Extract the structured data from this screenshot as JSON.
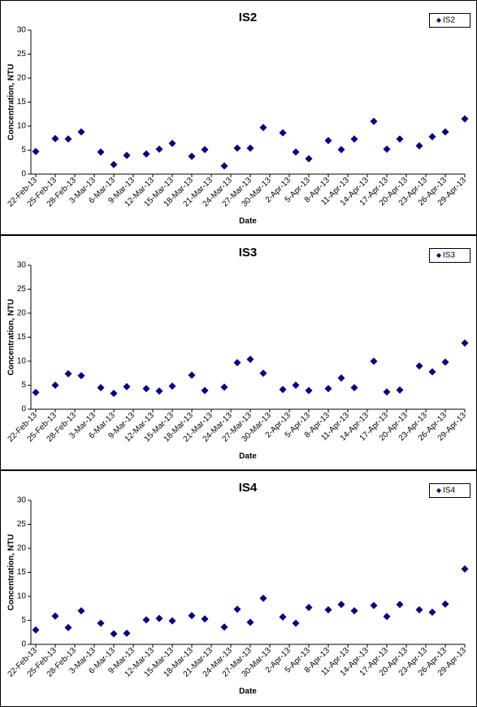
{
  "chart_data": [
    {
      "type": "scatter",
      "title": "IS2",
      "xlabel": "Date",
      "ylabel": "Concentration, NTU",
      "legend": "upper right",
      "x": [
        "22-Feb-13",
        "25-Feb-13",
        "27-Feb-13",
        "1-Mar-13",
        "4-Mar-13",
        "6-Mar-13",
        "8-Mar-13",
        "11-Mar-13",
        "13-Mar-13",
        "15-Mar-13",
        "18-Mar-13",
        "20-Mar-13",
        "23-Mar-13",
        "25-Mar-13",
        "27-Mar-13",
        "29-Mar-13",
        "1-Apr-13",
        "3-Apr-13",
        "5-Apr-13",
        "8-Apr-13",
        "10-Apr-13",
        "12-Apr-13",
        "15-Apr-13",
        "17-Apr-13",
        "19-Apr-13",
        "22-Apr-13",
        "24-Apr-13",
        "26-Apr-13",
        "29-Apr-13"
      ],
      "series": [
        {
          "name": "IS2",
          "color": "#000080",
          "values": [
            4.7,
            7.4,
            7.3,
            8.8,
            4.6,
            2.0,
            3.9,
            4.2,
            5.2,
            6.4,
            3.7,
            5.1,
            1.7,
            5.4,
            5.4,
            9.7,
            8.6,
            4.6,
            3.2,
            7.0,
            5.1,
            7.3,
            11.0,
            5.2,
            7.3,
            5.9,
            7.8,
            8.8,
            11.5
          ]
        }
      ],
      "xlim": [
        "22-Feb-13",
        "29-Apr-13"
      ],
      "xticks": [
        "22-Feb-13",
        "25-Feb-13",
        "28-Feb-13",
        "3-Mar-13",
        "6-Mar-13",
        "9-Mar-13",
        "12-Mar-13",
        "15-Mar-13",
        "18-Mar-13",
        "21-Mar-13",
        "24-Mar-13",
        "27-Mar-13",
        "30-Mar-13",
        "2-Apr-13",
        "5-Apr-13",
        "8-Apr-13",
        "11-Apr-13",
        "14-Apr-13",
        "17-Apr-13",
        "20-Apr-13",
        "23-Apr-13",
        "26-Apr-13",
        "29-Apr-13"
      ],
      "ylim": [
        0,
        30
      ],
      "yticks": [
        0,
        5,
        10,
        15,
        20,
        25,
        30
      ]
    },
    {
      "type": "scatter",
      "title": "IS3",
      "xlabel": "Date",
      "ylabel": "Concentration, NTU",
      "legend": "upper right",
      "x": [
        "22-Feb-13",
        "25-Feb-13",
        "27-Feb-13",
        "1-Mar-13",
        "4-Mar-13",
        "6-Mar-13",
        "8-Mar-13",
        "11-Mar-13",
        "13-Mar-13",
        "15-Mar-13",
        "18-Mar-13",
        "20-Mar-13",
        "23-Mar-13",
        "25-Mar-13",
        "27-Mar-13",
        "29-Mar-13",
        "1-Apr-13",
        "3-Apr-13",
        "5-Apr-13",
        "8-Apr-13",
        "10-Apr-13",
        "12-Apr-13",
        "15-Apr-13",
        "17-Apr-13",
        "19-Apr-13",
        "22-Apr-13",
        "24-Apr-13",
        "26-Apr-13",
        "29-Apr-13"
      ],
      "series": [
        {
          "name": "IS3",
          "color": "#000080",
          "values": [
            3.5,
            5.0,
            7.4,
            7.0,
            4.5,
            3.3,
            4.7,
            4.3,
            3.8,
            4.8,
            7.1,
            3.9,
            4.6,
            9.7,
            10.4,
            7.5,
            4.1,
            5.0,
            3.9,
            4.3,
            6.5,
            4.5,
            10.0,
            3.6,
            4.0,
            9.0,
            7.8,
            9.8,
            13.8
          ]
        }
      ],
      "xlim": [
        "22-Feb-13",
        "29-Apr-13"
      ],
      "xticks": [
        "22-Feb-13",
        "25-Feb-13",
        "28-Feb-13",
        "3-Mar-13",
        "6-Mar-13",
        "9-Mar-13",
        "12-Mar-13",
        "15-Mar-13",
        "18-Mar-13",
        "21-Mar-13",
        "24-Mar-13",
        "27-Mar-13",
        "30-Mar-13",
        "2-Apr-13",
        "5-Apr-13",
        "8-Apr-13",
        "11-Apr-13",
        "14-Apr-13",
        "17-Apr-13",
        "20-Apr-13",
        "23-Apr-13",
        "26-Apr-13",
        "29-Apr-13"
      ],
      "ylim": [
        0,
        30
      ],
      "yticks": [
        0,
        5,
        10,
        15,
        20,
        25,
        30
      ]
    },
    {
      "type": "scatter",
      "title": "IS4",
      "xlabel": "Date",
      "ylabel": "Concentration, NTU",
      "legend": "upper right",
      "x": [
        "22-Feb-13",
        "25-Feb-13",
        "27-Feb-13",
        "1-Mar-13",
        "4-Mar-13",
        "6-Mar-13",
        "8-Mar-13",
        "11-Mar-13",
        "13-Mar-13",
        "15-Mar-13",
        "18-Mar-13",
        "20-Mar-13",
        "23-Mar-13",
        "25-Mar-13",
        "27-Mar-13",
        "29-Mar-13",
        "1-Apr-13",
        "3-Apr-13",
        "5-Apr-13",
        "8-Apr-13",
        "10-Apr-13",
        "12-Apr-13",
        "15-Apr-13",
        "17-Apr-13",
        "19-Apr-13",
        "22-Apr-13",
        "24-Apr-13",
        "26-Apr-13",
        "29-Apr-13"
      ],
      "series": [
        {
          "name": "IS4",
          "color": "#000080",
          "values": [
            3.0,
            5.9,
            3.5,
            7.0,
            4.4,
            2.2,
            2.3,
            5.1,
            5.4,
            4.9,
            6.0,
            5.3,
            3.6,
            7.3,
            4.6,
            9.6,
            5.7,
            4.4,
            7.7,
            7.2,
            8.3,
            7.0,
            8.1,
            5.8,
            8.3,
            7.2,
            6.7,
            8.4,
            15.7
          ]
        }
      ],
      "xlim": [
        "22-Feb-13",
        "29-Apr-13"
      ],
      "xticks": [
        "22-Feb-13",
        "25-Feb-13",
        "28-Feb-13",
        "3-Mar-13",
        "6-Mar-13",
        "9-Mar-13",
        "12-Mar-13",
        "15-Mar-13",
        "18-Mar-13",
        "21-Mar-13",
        "24-Mar-13",
        "27-Mar-13",
        "30-Mar-13",
        "2-Apr-13",
        "5-Apr-13",
        "8-Apr-13",
        "11-Apr-13",
        "14-Apr-13",
        "17-Apr-13",
        "20-Apr-13",
        "23-Apr-13",
        "26-Apr-13",
        "29-Apr-13"
      ],
      "ylim": [
        0,
        30
      ],
      "yticks": [
        0,
        5,
        10,
        15,
        20,
        25,
        30
      ]
    }
  ]
}
